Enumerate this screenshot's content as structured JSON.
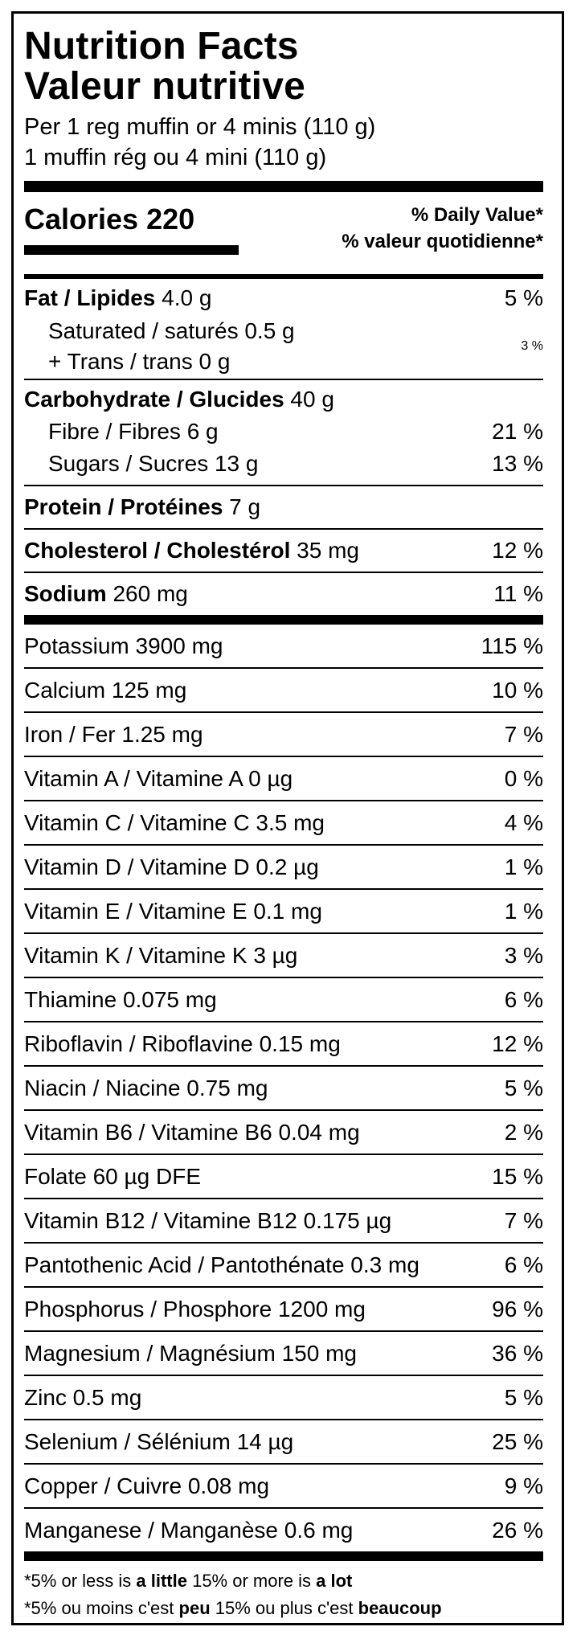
{
  "title_en": "Nutrition Facts",
  "title_fr": "Valeur nutritive",
  "serving_en": "Per 1 reg muffin or 4 minis (110 g)",
  "serving_fr": "1 muffin rég ou 4 mini (110 g)",
  "calories": "Calories 220",
  "dv_header_en": "% Daily Value*",
  "dv_header_fr": "% valeur quotidienne*",
  "fat": {
    "label": "Fat / Lipides",
    "amount": " 4.0 g",
    "dv": "5 %"
  },
  "saturated": "Saturated / saturés 0.5 g",
  "trans": "+ Trans / trans 0 g",
  "sat_trans_dv": "3 %",
  "carbohydrate": {
    "label": "Carbohydrate / Glucides",
    "amount": " 40 g"
  },
  "fibre": {
    "text": "Fibre / Fibres 6 g",
    "dv": "21 %"
  },
  "sugars": {
    "text": "Sugars / Sucres 13 g",
    "dv": "13 %"
  },
  "protein": {
    "label": "Protein / Protéines",
    "amount": " 7 g"
  },
  "cholesterol": {
    "label": "Cholesterol / Cholestérol",
    "amount": " 35 mg",
    "dv": "12 %"
  },
  "sodium": {
    "label": "Sodium",
    "amount": " 260 mg",
    "dv": "11 %"
  },
  "vitamins": [
    {
      "text": "Potassium 3900 mg",
      "dv": "115 %"
    },
    {
      "text": "Calcium 125 mg",
      "dv": "10 %"
    },
    {
      "text": "Iron / Fer 1.25 mg",
      "dv": "7 %"
    },
    {
      "text": "Vitamin A / Vitamine A 0 µg",
      "dv": "0 %"
    },
    {
      "text": "Vitamin C / Vitamine C 3.5 mg",
      "dv": "4 %"
    },
    {
      "text": "Vitamin D / Vitamine D 0.2 µg",
      "dv": "1 %"
    },
    {
      "text": "Vitamin E / Vitamine E 0.1 mg",
      "dv": "1 %"
    },
    {
      "text": "Vitamin K / Vitamine K 3 µg",
      "dv": "3 %"
    },
    {
      "text": "Thiamine 0.075 mg",
      "dv": "6 %"
    },
    {
      "text": "Riboflavin / Riboflavine 0.15 mg",
      "dv": "12 %"
    },
    {
      "text": "Niacin / Niacine 0.75 mg",
      "dv": "5 %"
    },
    {
      "text": "Vitamin B6 / Vitamine B6 0.04 mg",
      "dv": "2 %"
    },
    {
      "text": "Folate 60 µg DFE",
      "dv": "15 %"
    },
    {
      "text": "Vitamin B12 / Vitamine B12 0.175 µg",
      "dv": "7 %"
    },
    {
      "text": "Pantothenic Acid / Pantothénate 0.3 mg",
      "dv": "6 %"
    },
    {
      "text": "Phosphorus / Phosphore 1200 mg",
      "dv": "96 %"
    },
    {
      "text": "Magnesium / Magnésium 150 mg",
      "dv": "36 %"
    },
    {
      "text": "Zinc 0.5 mg",
      "dv": "5 %"
    },
    {
      "text": "Selenium / Sélénium 14 µg",
      "dv": "25 %"
    },
    {
      "text": "Copper / Cuivre 0.08 mg",
      "dv": "9 %"
    },
    {
      "text": "Manganese / Manganèse 0.6 mg",
      "dv": "26 %"
    }
  ],
  "footnote_en": {
    "p1": "*5% or less is ",
    "b1": "a little",
    "p2": " 15% or more is ",
    "b2": "a lot"
  },
  "footnote_fr": {
    "p1": "*5% ou moins c'est ",
    "b1": "peu",
    "p2": " 15% ou plus c'est ",
    "b2": "beaucoup"
  }
}
